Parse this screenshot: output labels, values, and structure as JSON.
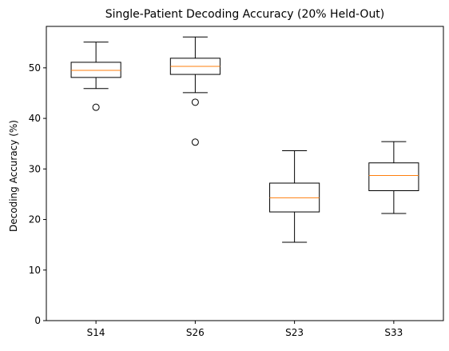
{
  "chart_data": {
    "type": "box",
    "title": "Single-Patient Decoding Accuracy (20% Held-Out)",
    "xlabel": "",
    "ylabel": "Decoding Accuracy (%)",
    "ylim": [
      0,
      58.2
    ],
    "yticks": [
      0,
      10,
      20,
      30,
      40,
      50
    ],
    "grid": false,
    "categories": [
      "S14",
      "S26",
      "S23",
      "S33"
    ],
    "boxes": [
      {
        "label": "S14",
        "whisker_low": 45.9,
        "q1": 48.1,
        "median": 49.5,
        "q3": 51.1,
        "whisker_high": 55.1,
        "outliers": [
          42.2
        ]
      },
      {
        "label": "S26",
        "whisker_low": 45.1,
        "q1": 48.7,
        "median": 50.3,
        "q3": 51.9,
        "whisker_high": 56.1,
        "outliers": [
          43.2,
          35.3
        ]
      },
      {
        "label": "S23",
        "whisker_low": 15.5,
        "q1": 21.5,
        "median": 24.3,
        "q3": 27.2,
        "whisker_high": 33.6,
        "outliers": []
      },
      {
        "label": "S33",
        "whisker_low": 21.2,
        "q1": 25.7,
        "median": 28.7,
        "q3": 31.2,
        "whisker_high": 35.4,
        "outliers": []
      }
    ],
    "colors": {
      "box": "#000000",
      "median": "#ff7f0e",
      "axes": "#000000"
    }
  }
}
